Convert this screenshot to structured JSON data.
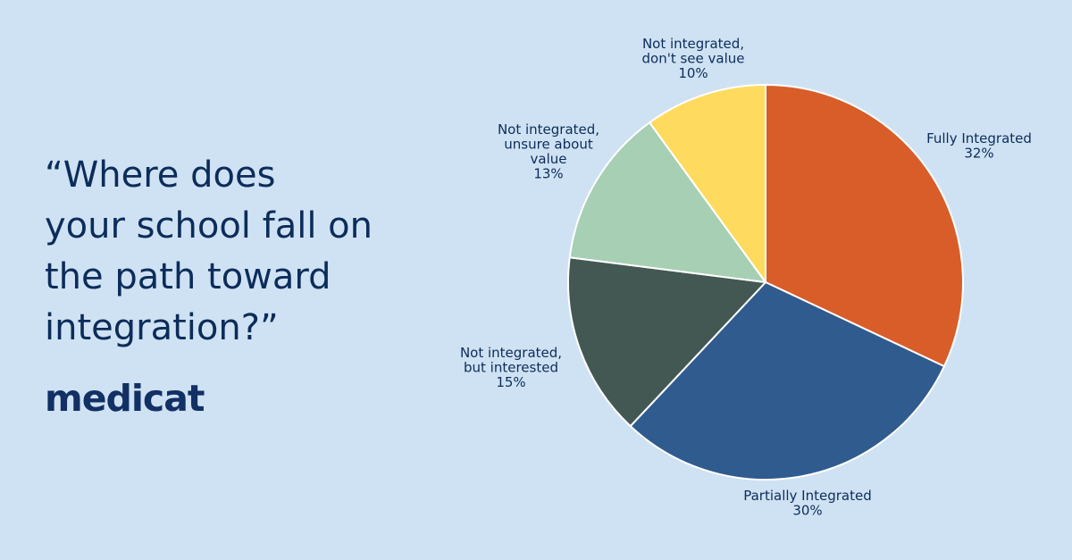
{
  "page": {
    "background": "#cfe2f3"
  },
  "headline": {
    "lines": [
      "“Where does",
      "your school fall on",
      "the path toward",
      "integration?”"
    ],
    "color": "#0c2c5a"
  },
  "brand": {
    "logo_text": "medicat",
    "color": "#123064"
  },
  "chart_data": {
    "type": "pie",
    "start": "12 o'clock",
    "direction": "clockwise",
    "slices": [
      {
        "label_lines": [
          "Fully Integrated"
        ],
        "value": 32,
        "value_label": "32%",
        "color": "#d95d29"
      },
      {
        "label_lines": [
          "Partially Integrated"
        ],
        "value": 30,
        "value_label": "30%",
        "color": "#2f5b8f"
      },
      {
        "label_lines": [
          "Not integrated,",
          "but interested"
        ],
        "value": 15,
        "value_label": "15%",
        "color": "#435853"
      },
      {
        "label_lines": [
          "Not integrated,",
          "unsure about",
          "value"
        ],
        "value": 13,
        "value_label": "13%",
        "color": "#a6cfb4"
      },
      {
        "label_lines": [
          "Not integrated,",
          "don't see value"
        ],
        "value": 10,
        "value_label": "10%",
        "color": "#fedb5e"
      }
    ]
  }
}
